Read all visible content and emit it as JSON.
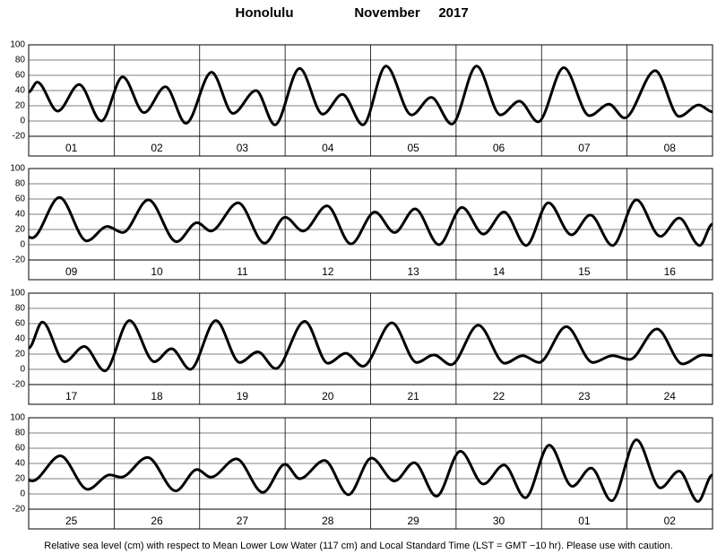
{
  "title": "Honolulu",
  "month": "November",
  "year": "2017",
  "footnote": "Relative sea level (cm) with respect to Mean Lower Low Water (117 cm) and Local Standard Time (LST = GMT −10 hr). Please use with caution.",
  "chart_data": [
    {
      "type": "line",
      "color": "#000000",
      "grid": true,
      "xlim": [
        0,
        8
      ],
      "ylim": [
        -20,
        100
      ],
      "yticks": [
        -20,
        0,
        20,
        40,
        60,
        80,
        100
      ],
      "categories": [
        "01",
        "02",
        "03",
        "04",
        "05",
        "06",
        "07",
        "08"
      ],
      "x": [
        0,
        0.1,
        0.34,
        0.59,
        0.85,
        1.1,
        1.35,
        1.6,
        1.84,
        2.14,
        2.39,
        2.66,
        2.88,
        3.17,
        3.44,
        3.67,
        3.91,
        4.18,
        4.48,
        4.71,
        4.95,
        5.24,
        5.52,
        5.74,
        5.96,
        6.26,
        6.56,
        6.79,
        6.97,
        7.33,
        7.61,
        7.84,
        8
      ],
      "values": [
        38,
        51,
        13,
        48,
        0,
        58,
        11,
        45,
        -3,
        64,
        10,
        40,
        -5,
        69,
        9,
        35,
        -5,
        72,
        8,
        31,
        -4,
        72,
        8,
        26,
        -1,
        70,
        7,
        22,
        4,
        66,
        6,
        21,
        12
      ]
    },
    {
      "type": "line",
      "color": "#000000",
      "grid": true,
      "xlim": [
        0,
        8
      ],
      "ylim": [
        -20,
        100
      ],
      "yticks": [
        -20,
        0,
        20,
        40,
        60,
        80,
        100
      ],
      "categories": [
        "09",
        "10",
        "11",
        "12",
        "13",
        "14",
        "15",
        "16"
      ],
      "x": [
        0,
        0.04,
        0.36,
        0.68,
        0.92,
        1.1,
        1.4,
        1.73,
        1.97,
        2.13,
        2.45,
        2.76,
        3.0,
        3.21,
        3.49,
        3.77,
        4.05,
        4.28,
        4.52,
        4.8,
        5.07,
        5.32,
        5.56,
        5.82,
        6.08,
        6.35,
        6.57,
        6.83,
        7.11,
        7.39,
        7.61,
        7.85,
        8
      ],
      "values": [
        10,
        9,
        62,
        5,
        24,
        16,
        59,
        4,
        29,
        18,
        55,
        2,
        36,
        18,
        51,
        1,
        43,
        16,
        47,
        0,
        49,
        14,
        43,
        -1,
        55,
        13,
        39,
        -1,
        59,
        11,
        35,
        -1,
        27
      ]
    },
    {
      "type": "line",
      "color": "#000000",
      "grid": true,
      "xlim": [
        0,
        8
      ],
      "ylim": [
        -20,
        100
      ],
      "yticks": [
        -20,
        0,
        20,
        40,
        60,
        80,
        100
      ],
      "categories": [
        "17",
        "18",
        "19",
        "20",
        "21",
        "22",
        "23",
        "24"
      ],
      "x": [
        0,
        0.16,
        0.42,
        0.65,
        0.89,
        1.18,
        1.47,
        1.67,
        1.89,
        2.19,
        2.47,
        2.68,
        2.89,
        3.23,
        3.5,
        3.71,
        3.91,
        4.25,
        4.54,
        4.74,
        4.94,
        5.26,
        5.57,
        5.78,
        5.97,
        6.29,
        6.6,
        6.83,
        7.03,
        7.35,
        7.65,
        7.89,
        8
      ],
      "values": [
        28,
        62,
        10,
        30,
        -2,
        64,
        10,
        27,
        0,
        64,
        9,
        23,
        1,
        63,
        8,
        21,
        4,
        61,
        9,
        19,
        6,
        58,
        8,
        18,
        9,
        56,
        9,
        18,
        13,
        53,
        7,
        19,
        18
      ]
    },
    {
      "type": "line",
      "color": "#000000",
      "grid": true,
      "xlim": [
        0,
        8
      ],
      "ylim": [
        -20,
        100
      ],
      "yticks": [
        -20,
        0,
        20,
        40,
        60,
        80,
        100
      ],
      "categories": [
        "25",
        "26",
        "27",
        "28",
        "29",
        "30",
        "01",
        "02"
      ],
      "x": [
        0,
        0.04,
        0.37,
        0.69,
        0.95,
        1.08,
        1.39,
        1.72,
        1.97,
        2.13,
        2.43,
        2.74,
        3.0,
        3.17,
        3.46,
        3.74,
        4.01,
        4.28,
        4.51,
        4.77,
        5.05,
        5.32,
        5.56,
        5.81,
        6.09,
        6.36,
        6.58,
        6.82,
        7.11,
        7.39,
        7.61,
        7.83,
        8
      ],
      "values": [
        18,
        17,
        50,
        6,
        25,
        22,
        48,
        4,
        32,
        22,
        46,
        2,
        39,
        20,
        44,
        -1,
        47,
        17,
        41,
        -3,
        56,
        13,
        38,
        -5,
        64,
        10,
        34,
        -9,
        71,
        8,
        30,
        -10,
        25
      ]
    }
  ]
}
